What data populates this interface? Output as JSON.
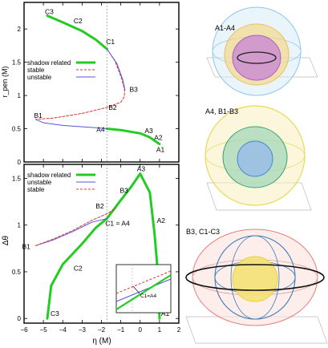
{
  "chart_data": [
    {
      "type": "line",
      "xlim": [
        -6,
        2
      ],
      "ylim": [
        0,
        2.4
      ],
      "ylabel": "r_pen (M)",
      "xlabel": "",
      "xticks": [
        -6,
        -5,
        -4,
        -3,
        -2,
        -1,
        0,
        1,
        2
      ],
      "yticks": [
        0,
        0.5,
        1,
        1.5,
        2
      ],
      "ytick_labels": [
        "0",
        "0.5",
        "1",
        "1.5",
        "2"
      ],
      "vline_x": -1.72,
      "legend": {
        "position": "center-left",
        "entries": [
          "shadow related",
          "stable",
          "unstable"
        ]
      },
      "series": [
        {
          "name": "shadow related",
          "color": "#22cc22",
          "style": "solid",
          "width": 3,
          "segments": [
            [
              [
                -4.8,
                2.2
              ],
              [
                -4.0,
                2.1
              ],
              [
                -3.0,
                1.97
              ],
              [
                -2.3,
                1.84
              ],
              [
                -1.72,
                1.7
              ]
            ],
            [
              [
                -1.72,
                0.5
              ],
              [
                -1.0,
                0.48
              ],
              [
                0.0,
                0.43
              ],
              [
                0.5,
                0.37
              ],
              [
                1.0,
                0.27
              ]
            ]
          ]
        },
        {
          "name": "stable",
          "color": "#dd3333",
          "style": "dashed",
          "width": 1,
          "segments": [
            [
              [
                -1.72,
                1.7
              ],
              [
                -1.3,
                1.52
              ],
              [
                -0.95,
                1.25
              ],
              [
                -0.8,
                1.08
              ],
              [
                -0.82,
                0.98
              ],
              [
                -1.0,
                0.9
              ],
              [
                -1.72,
                0.82
              ],
              [
                -3.0,
                0.73
              ],
              [
                -4.5,
                0.66
              ],
              [
                -5.4,
                0.64
              ]
            ]
          ]
        },
        {
          "name": "unstable",
          "color": "#5555dd",
          "style": "solid",
          "width": 1,
          "segments": [
            [
              [
                -1.72,
                1.7
              ],
              [
                -1.2,
                1.48
              ],
              [
                -0.9,
                1.24
              ],
              [
                -0.78,
                1.08
              ]
            ],
            [
              [
                -5.4,
                0.64
              ],
              [
                -5.0,
                0.59
              ],
              [
                -4.0,
                0.55
              ],
              [
                -3.0,
                0.53
              ],
              [
                -2.0,
                0.51
              ],
              [
                -1.72,
                0.5
              ]
            ]
          ]
        }
      ],
      "points": [
        {
          "label": "C3",
          "x": -4.8,
          "y": 2.2
        },
        {
          "label": "C2",
          "x": -3.6,
          "y": 2.06
        },
        {
          "label": "C1",
          "x": -1.72,
          "y": 1.7
        },
        {
          "label": "B3",
          "x": -0.8,
          "y": 1.08
        },
        {
          "label": "B2",
          "x": -1.72,
          "y": 0.82
        },
        {
          "label": "B1",
          "x": -5.4,
          "y": 0.64
        },
        {
          "label": "A4",
          "x": -1.72,
          "y": 0.5
        },
        {
          "label": "A3",
          "x": 0.4,
          "y": 0.4
        },
        {
          "label": "A2",
          "x": 0.85,
          "y": 0.32
        },
        {
          "label": "A1",
          "x": 1.0,
          "y": 0.27
        }
      ]
    },
    {
      "type": "line",
      "xlim": [
        -6,
        2
      ],
      "ylim": [
        -0.05,
        1.65
      ],
      "ylabel": "Δθ",
      "xlabel": "η (M)",
      "xticks": [
        -6,
        -5,
        -4,
        -3,
        -2,
        -1,
        0,
        1,
        2
      ],
      "xtick_labels": [
        "−6",
        "−5",
        "−4",
        "−3",
        "−2",
        "−1",
        "0",
        "1",
        "2"
      ],
      "yticks": [
        0,
        0.5,
        1,
        1.5
      ],
      "ytick_labels": [
        "0",
        "0.5",
        "1",
        "1.5"
      ],
      "vline_x": -1.72,
      "legend": {
        "position": "top-left",
        "entries": [
          "shadow related",
          "unstable",
          "stable"
        ]
      },
      "series": [
        {
          "name": "shadow related",
          "color": "#22cc22",
          "style": "solid",
          "width": 3,
          "segments": [
            [
              [
                -4.8,
                0.0
              ],
              [
                -4.6,
                0.35
              ],
              [
                -4.0,
                0.58
              ],
              [
                -3.0,
                0.8
              ],
              [
                -2.3,
                0.97
              ],
              [
                -1.72,
                1.07
              ],
              [
                -1.1,
                1.24
              ],
              [
                -0.5,
                1.4
              ],
              [
                0.0,
                1.55
              ],
              [
                0.5,
                1.35
              ],
              [
                0.75,
                0.9
              ],
              [
                0.95,
                0.4
              ],
              [
                1.0,
                0.0
              ]
            ]
          ]
        },
        {
          "name": "unstable",
          "color": "#5555dd",
          "style": "solid",
          "width": 1,
          "segments": [
            [
              [
                -5.4,
                0.78
              ],
              [
                -4.5,
                0.84
              ],
              [
                -3.5,
                0.93
              ],
              [
                -2.5,
                1.03
              ],
              [
                -1.72,
                1.07
              ]
            ]
          ]
        },
        {
          "name": "stable",
          "color": "#dd3333",
          "style": "dashed",
          "width": 1,
          "segments": [
            [
              [
                -5.4,
                0.78
              ],
              [
                -4.5,
                0.85
              ],
              [
                -3.5,
                0.94
              ],
              [
                -2.5,
                1.05
              ],
              [
                -1.72,
                1.12
              ],
              [
                -1.25,
                1.18
              ]
            ]
          ]
        }
      ],
      "points": [
        {
          "label": "A3",
          "x": 0.0,
          "y": 1.55
        },
        {
          "label": "B3",
          "x": -0.8,
          "y": 1.32
        },
        {
          "label": "B2",
          "x": -1.72,
          "y": 1.15
        },
        {
          "label": "C1 = A4",
          "x": -1.72,
          "y": 1.07
        },
        {
          "label": "A2",
          "x": 0.7,
          "y": 1.05
        },
        {
          "label": "B1",
          "x": -5.4,
          "y": 0.78
        },
        {
          "label": "C2",
          "x": -3.6,
          "y": 0.6
        },
        {
          "label": "C3",
          "x": -4.8,
          "y": 0.0
        },
        {
          "label": "A1",
          "x": 1.0,
          "y": 0.0
        }
      ],
      "inset_label": "C1=A4"
    }
  ],
  "orbit_panels": [
    {
      "label": "A1-A4",
      "colors": [
        "#8ec7ea",
        "#e8c15a",
        "#b05fc0"
      ]
    },
    {
      "label": "A4, B1-B3",
      "colors": [
        "#e8d95a",
        "#3aa36a",
        "#4a8acc"
      ]
    },
    {
      "label": "B3, C1-C3",
      "colors": [
        "#e8807a",
        "#3a7ab5",
        "#e8d330"
      ]
    }
  ],
  "colors": {
    "shadow": "#22cc22",
    "stable": "#dd3333",
    "unstable": "#5555dd",
    "axis": "#000000"
  }
}
